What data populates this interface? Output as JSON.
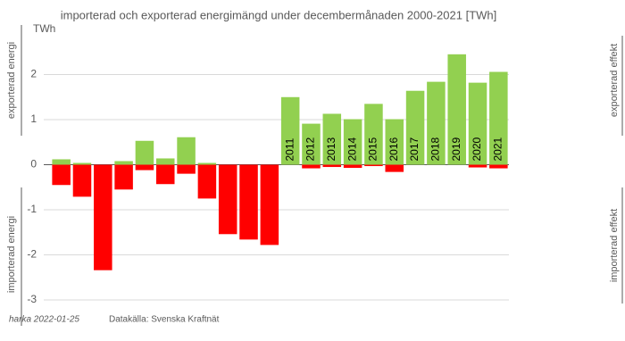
{
  "chart_data": {
    "type": "bar",
    "title": "importerad och exporterad energimängd under decembermånaden 2000-2021 [TWh]",
    "categories": [
      null,
      null,
      null,
      null,
      null,
      null,
      null,
      null,
      null,
      null,
      null,
      "2011",
      "2012",
      "2013",
      "2014",
      "2015",
      "2016",
      "2017",
      "2018",
      "2019",
      "2020",
      "2021"
    ],
    "series": [
      {
        "color": "#92d050",
        "values": [
          0.12,
          0.04,
          0,
          0.08,
          0.53,
          0.14,
          0.61,
          0.04,
          0,
          0,
          0,
          1.5,
          0.91,
          1.13,
          1.01,
          1.35,
          1.01,
          1.64,
          1.84,
          2.45,
          1.82,
          2.06
        ]
      },
      {
        "color": "#ff0000",
        "values": [
          -0.45,
          -0.71,
          -2.34,
          -0.55,
          -0.12,
          -0.43,
          -0.2,
          -0.75,
          -1.54,
          -1.66,
          -1.78,
          0,
          -0.08,
          -0.05,
          -0.07,
          -0.03,
          -0.16,
          0,
          0,
          0,
          -0.06,
          -0.08
        ]
      }
    ],
    "ylim": [
      -3,
      3.1
    ],
    "yticks": [
      {
        "value": 3,
        "label": "TWh"
      },
      2,
      1,
      0,
      -1,
      -2,
      -3
    ],
    "grid": true,
    "side_labels": {
      "left_top": "exporterad energi",
      "left_bottom": "importerad energi",
      "right_top": "exporterad effekt",
      "right_bottom": "importerad effekt"
    },
    "footer": {
      "author": "harka 2022-01-25",
      "source": "Datakälla: Svenska Kraftnät"
    }
  }
}
